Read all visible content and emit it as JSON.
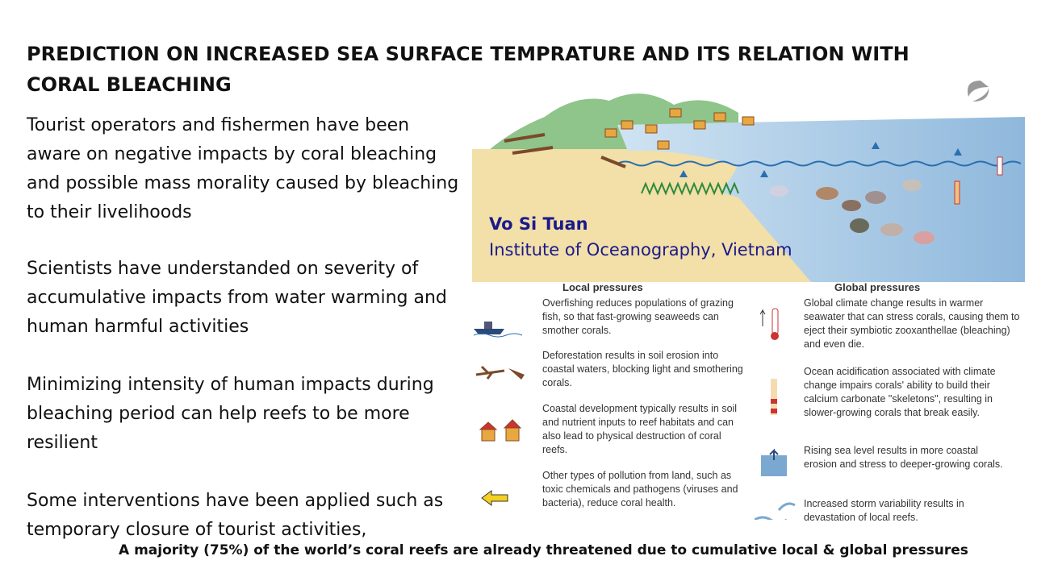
{
  "slide": {
    "title": "PREDICTION ON INCREASED SEA SURFACE TEMPRATURE AND ITS RELATION WITH CORAL BLEACHING",
    "paragraphs": [
      "Tourist operators and fishermen have been aware on negative impacts by coral bleaching and possible mass morality caused by bleaching to their livelihoods",
      "Scientists have understanded on severity of accumulative impacts from water warming and human harmful activities",
      "Minimizing intensity of human impacts during bleaching period can help reefs to be more resilient",
      "Some interventions have been applied such as temporary closure of tourist activities,"
    ],
    "author": "Vo Si Tuan",
    "institute": "Institute of Oceanography, Vietnam",
    "figure": {
      "local_heading": "Local pressures",
      "global_heading": "Global pressures",
      "local_items": [
        "Overfishing reduces populations of grazing fish, so that fast-growing seaweeds can smother corals.",
        "Deforestation results in soil erosion into coastal waters, blocking light and smothering corals.",
        "Coastal development typically results in soil and nutrient inputs to reef habitats and can also lead to physical destruction of coral reefs.",
        "Other types of pollution from land, such as toxic chemicals and pathogens (viruses and bacteria), reduce coral health."
      ],
      "global_items": [
        "Global climate change results in warmer seawater that can stress corals, causing them to eject their symbiotic zooxanthellae (bleaching) and even die.",
        "Ocean acidification associated with climate change impairs corals' ability to build their calcium carbonate \"skeletons\", resulting in slower-growing corals that break easily.",
        "Rising sea level results in more coastal erosion and stress to deeper-growing corals.",
        "Increased storm variability results in devastation of local reefs."
      ]
    },
    "footer": "A majority (75%) of the world’s coral reefs are already threatened due to cumulative local & global pressures"
  }
}
